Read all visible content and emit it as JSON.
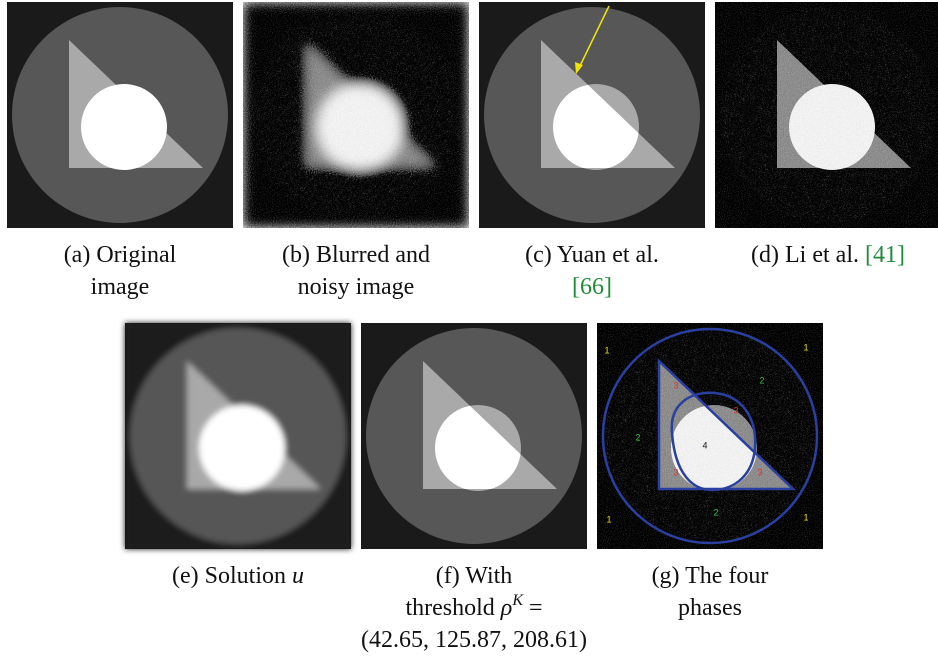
{
  "subfigures": [
    {
      "label": "(a)",
      "caption_lines": [
        "Original",
        "image"
      ]
    },
    {
      "label": "(b)",
      "caption_lines": [
        "Blurred and",
        "noisy image"
      ]
    },
    {
      "label": "(c)",
      "caption_lines": [
        "Yuan et al."
      ],
      "citation": "[66]"
    },
    {
      "label": "(d)",
      "caption_lines": [
        "Li et al."
      ],
      "citation": "[41]"
    },
    {
      "label": "(e)",
      "caption_lines": [
        "Solution"
      ],
      "math": "u"
    },
    {
      "label": "(f)",
      "caption_lines": [
        "With",
        "threshold"
      ],
      "math": "ρ",
      "superscript": "K",
      "equals": "=",
      "threshold_values": "(42.65, 125.87, 208.61)"
    },
    {
      "label": "(g)",
      "caption_lines": [
        "The four",
        "phases"
      ],
      "region_labels": [
        "1",
        "1",
        "1",
        "1",
        "2",
        "2",
        "2",
        "3",
        "3",
        "3",
        "3",
        "4"
      ]
    }
  ]
}
